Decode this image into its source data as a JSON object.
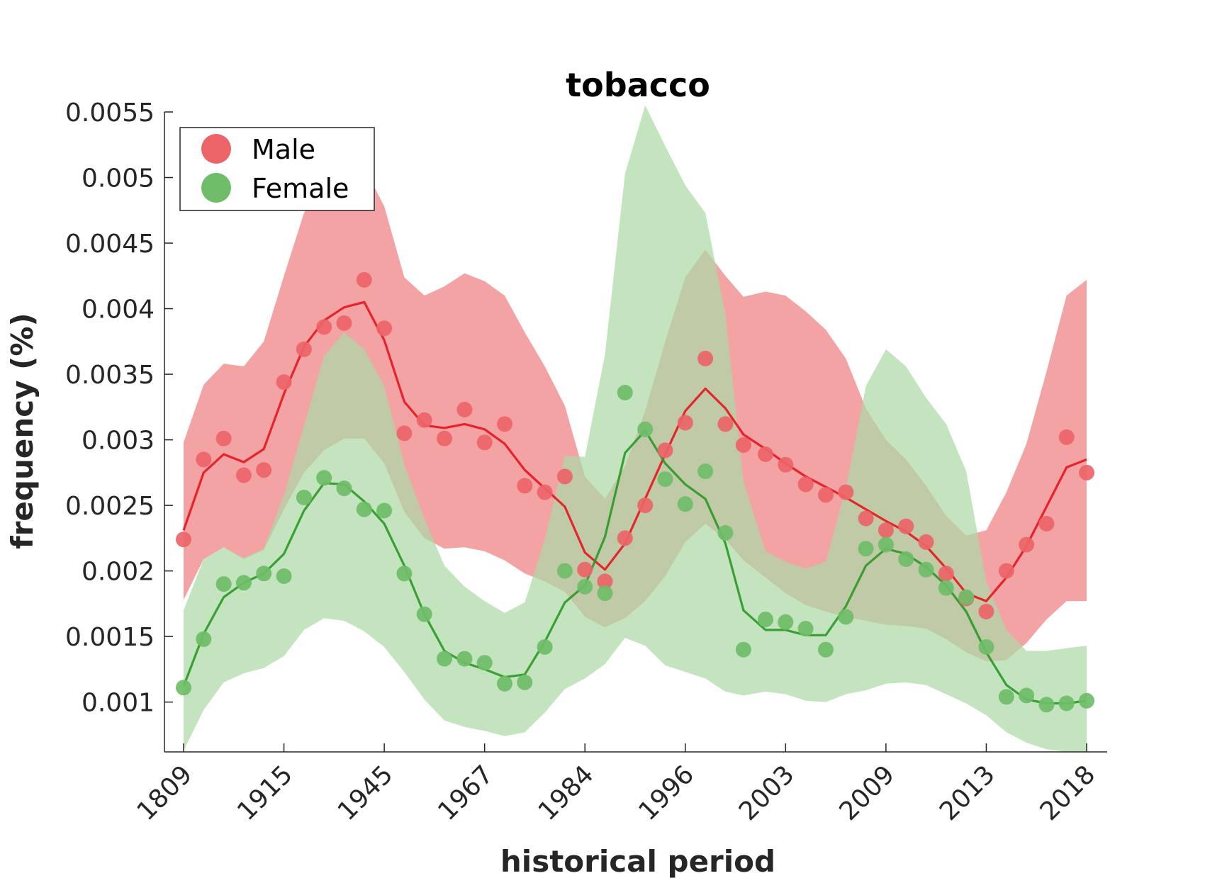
{
  "chart_data": {
    "type": "line",
    "title": "tobacco",
    "xlabel": "historical period",
    "ylabel": "frequency (%)",
    "ylim": [
      0.00062,
      0.0055
    ],
    "yticks": [
      0.001,
      0.0015,
      0.002,
      0.0025,
      0.003,
      0.0035,
      0.004,
      0.0045,
      0.005,
      0.0055
    ],
    "ytick_labels": [
      "0.001",
      "0.0015",
      "0.002",
      "0.0025",
      "0.003",
      "0.0035",
      "0.004",
      "0.0045",
      "0.005",
      "0.0055"
    ],
    "xtick_positions": [
      1,
      6,
      11,
      16,
      21,
      26,
      31,
      36,
      41,
      46
    ],
    "xtick_labels": [
      "1809",
      "1915",
      "1945",
      "1967",
      "1984",
      "1996",
      "2003",
      "2009",
      "2013",
      "2018"
    ],
    "x": [
      1,
      2,
      3,
      4,
      5,
      6,
      7,
      8,
      9,
      10,
      11,
      12,
      13,
      14,
      15,
      16,
      17,
      18,
      19,
      20,
      21,
      22,
      23,
      24,
      25,
      26,
      27,
      28,
      28.9,
      30,
      31,
      32,
      33,
      34,
      35,
      36,
      37,
      38,
      39,
      40,
      41,
      42,
      43,
      44,
      45,
      46
    ],
    "legend_position": "top-left",
    "grid": false,
    "series": [
      {
        "name": "Male",
        "color": "#e8141c",
        "marker_color": "#ed6468",
        "band_color": "#f4a3a5",
        "points": [
          0.00224,
          0.00285,
          0.00301,
          0.00273,
          0.00277,
          0.00344,
          0.00369,
          0.00386,
          0.00389,
          0.00422,
          0.00385,
          0.00305,
          0.00315,
          0.00301,
          0.00323,
          0.00298,
          0.00312,
          0.00265,
          0.0026,
          0.00272,
          0.00201,
          0.00192,
          0.00225,
          0.0025,
          0.00292,
          0.00313,
          0.00362,
          0.00312,
          0.00296,
          0.00289,
          0.00281,
          0.00266,
          0.00258,
          0.0026,
          0.0024,
          0.00231,
          0.00234,
          0.00222,
          0.00198,
          0.00179,
          0.00169,
          0.002,
          0.0022,
          0.00236,
          0.00302,
          0.00275
        ],
        "line": [
          0.00231,
          0.00275,
          0.00289,
          0.00283,
          0.00293,
          0.00335,
          0.00371,
          0.00391,
          0.00401,
          0.00405,
          0.00376,
          0.00329,
          0.00311,
          0.00309,
          0.00312,
          0.00308,
          0.00297,
          0.00277,
          0.00263,
          0.00249,
          0.00214,
          0.00201,
          0.00221,
          0.00255,
          0.00289,
          0.00322,
          0.00339,
          0.00324,
          0.00304,
          0.00293,
          0.00282,
          0.00272,
          0.00264,
          0.00256,
          0.00247,
          0.00238,
          0.0023,
          0.00219,
          0.00202,
          0.00183,
          0.00177,
          0.00195,
          0.00219,
          0.00249,
          0.00279,
          0.00285
        ],
        "upper": [
          0.00298,
          0.00342,
          0.00358,
          0.00356,
          0.00375,
          0.00425,
          0.00473,
          0.005,
          0.0051,
          0.00508,
          0.00478,
          0.00424,
          0.0041,
          0.00417,
          0.00427,
          0.00421,
          0.0041,
          0.00382,
          0.00356,
          0.00326,
          0.00272,
          0.00255,
          0.0028,
          0.00322,
          0.00375,
          0.00424,
          0.00445,
          0.00425,
          0.00409,
          0.00413,
          0.0041,
          0.00398,
          0.00384,
          0.00362,
          0.00324,
          0.003,
          0.00285,
          0.00265,
          0.00242,
          0.00227,
          0.00231,
          0.0026,
          0.00297,
          0.00352,
          0.0041,
          0.00422
        ],
        "lower": [
          0.00178,
          0.00209,
          0.00218,
          0.00209,
          0.00216,
          0.00247,
          0.00275,
          0.00292,
          0.00301,
          0.00301,
          0.00282,
          0.00245,
          0.00225,
          0.00217,
          0.00218,
          0.00215,
          0.00208,
          0.00198,
          0.00192,
          0.00184,
          0.00165,
          0.00157,
          0.00164,
          0.00177,
          0.00196,
          0.00222,
          0.00236,
          0.00224,
          0.00208,
          0.00195,
          0.00183,
          0.00174,
          0.00169,
          0.00165,
          0.00162,
          0.00159,
          0.00158,
          0.00156,
          0.00148,
          0.00138,
          0.00131,
          0.00132,
          0.00145,
          0.00163,
          0.00177,
          0.00177
        ]
      },
      {
        "name": "Female",
        "color": "#2a9925",
        "marker_color": "#6fbd68",
        "band_color": "#acd9a6",
        "points": [
          0.00111,
          0.00148,
          0.0019,
          0.00191,
          0.00198,
          0.00196,
          0.00256,
          0.00271,
          0.00263,
          0.00247,
          0.00246,
          0.00198,
          0.00167,
          0.00133,
          0.00133,
          0.0013,
          0.00114,
          0.00115,
          0.00142,
          0.002,
          0.00188,
          0.00183,
          0.00336,
          0.00308,
          0.0027,
          0.00251,
          0.00276,
          0.00229,
          0.0014,
          0.00163,
          0.00161,
          0.00156,
          0.0014,
          0.00165,
          0.00217,
          0.0022,
          0.00209,
          0.00201,
          0.00187,
          0.0018,
          0.00142,
          0.00104,
          0.00105,
          0.00098,
          0.00099,
          0.00101
        ],
        "line": [
          0.00112,
          0.00152,
          0.0018,
          0.00191,
          0.00198,
          0.00213,
          0.00246,
          0.00267,
          0.00266,
          0.00253,
          0.00236,
          0.00204,
          0.00167,
          0.00139,
          0.0013,
          0.00125,
          0.00119,
          0.00121,
          0.00146,
          0.00176,
          0.00189,
          0.00226,
          0.0029,
          0.00307,
          0.00282,
          0.00266,
          0.00255,
          0.00221,
          0.0017,
          0.00155,
          0.00155,
          0.00151,
          0.00151,
          0.00173,
          0.00204,
          0.00217,
          0.00213,
          0.00203,
          0.00189,
          0.00169,
          0.00138,
          0.00113,
          0.00102,
          0.00099,
          0.00099,
          0.00101
        ],
        "upper": [
          0.0017,
          0.00209,
          0.00218,
          0.0021,
          0.00217,
          0.00258,
          0.00311,
          0.00364,
          0.00382,
          0.00369,
          0.00341,
          0.00281,
          0.0024,
          0.00204,
          0.00188,
          0.00177,
          0.00168,
          0.00176,
          0.00224,
          0.00288,
          0.00287,
          0.00365,
          0.00503,
          0.00555,
          0.00524,
          0.00494,
          0.00473,
          0.00396,
          0.00268,
          0.00215,
          0.00207,
          0.00202,
          0.00207,
          0.00263,
          0.00341,
          0.00369,
          0.00356,
          0.00332,
          0.00312,
          0.00276,
          0.00192,
          0.00155,
          0.00139,
          0.00139,
          0.00141,
          0.00143
        ],
        "lower": [
          0.00063,
          0.00094,
          0.00115,
          0.00122,
          0.00126,
          0.00135,
          0.00155,
          0.00164,
          0.00162,
          0.00154,
          0.00142,
          0.00123,
          0.00102,
          0.00086,
          0.00081,
          0.00078,
          0.00074,
          0.00077,
          0.00092,
          0.0011,
          0.00118,
          0.00129,
          0.00149,
          0.00143,
          0.00128,
          0.00123,
          0.00118,
          0.00108,
          0.00105,
          0.00108,
          0.00106,
          0.00101,
          0.001,
          0.00106,
          0.00109,
          0.00114,
          0.00115,
          0.00113,
          0.00106,
          0.00099,
          0.0009,
          0.00077,
          0.00069,
          0.00064,
          0.00062,
          0.00062
        ]
      }
    ]
  }
}
